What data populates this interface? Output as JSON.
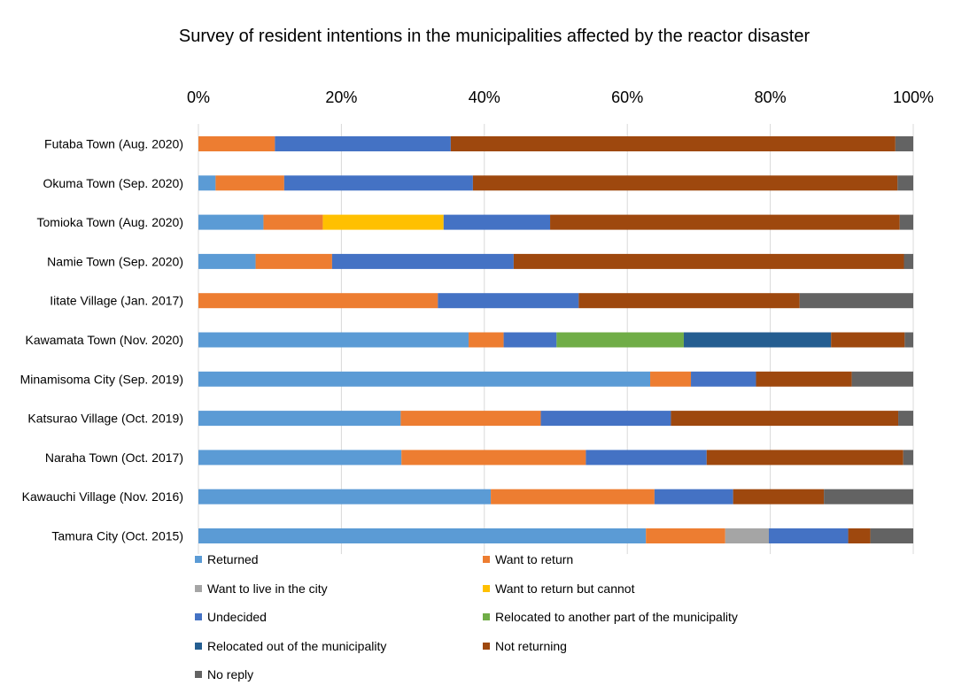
{
  "chart_data": {
    "type": "bar",
    "orientation": "horizontal",
    "stacked": "percent",
    "title": "Survey of resident intentions in the municipalities affected by the reactor disaster",
    "xlabel": "",
    "ylabel": "",
    "xlim": [
      0,
      100
    ],
    "x_ticks": [
      "0%",
      "20%",
      "40%",
      "60%",
      "80%",
      "100%"
    ],
    "x_tick_values": [
      0,
      20,
      40,
      60,
      80,
      100
    ],
    "x_axis_position": "top",
    "grid": true,
    "legend_position": "bottom",
    "categories": [
      "Futaba Town (Aug. 2020)",
      "Okuma Town (Sep. 2020)",
      "Tomioka Town (Aug. 2020)",
      "Namie Town (Sep. 2020)",
      "Iitate Village (Jan. 2017)",
      "Kawamata Town (Nov. 2020)",
      "Minamisoma City (Sep. 2019)",
      "Katsurao Village (Oct. 2019)",
      "Naraha Town (Oct. 2017)",
      "Kawauchi Village (Nov. 2016)",
      "Tamura City (Oct. 2015)"
    ],
    "series": [
      {
        "name": "Returned",
        "color": "#5b9bd5",
        "values": [
          0,
          2.4,
          9.1,
          8.0,
          0,
          37.8,
          63.2,
          28.3,
          28.4,
          40.9,
          62.6
        ]
      },
      {
        "name": "Want to return",
        "color": "#ed7d31",
        "values": [
          10.7,
          9.6,
          8.3,
          10.7,
          33.5,
          4.9,
          5.7,
          19.6,
          25.8,
          22.9,
          11.1
        ]
      },
      {
        "name": "Want to live in the city",
        "color": "#a5a5a5",
        "values": [
          0,
          0,
          0,
          0,
          0,
          0,
          0,
          0,
          0,
          0,
          6.1
        ]
      },
      {
        "name": "Want to return but cannot",
        "color": "#ffc000",
        "values": [
          0,
          0,
          16.9,
          0,
          0,
          0,
          0,
          0,
          0,
          0,
          0
        ]
      },
      {
        "name": "Undecided",
        "color": "#4472c4",
        "values": [
          24.6,
          26.4,
          14.9,
          25.4,
          19.7,
          7.4,
          9.1,
          18.2,
          16.9,
          11.0,
          11.1
        ]
      },
      {
        "name": "Relocated to another part of the municipality",
        "color": "#70ad47",
        "values": [
          0,
          0,
          0,
          0,
          0,
          17.8,
          0,
          0,
          0,
          0,
          0
        ]
      },
      {
        "name": "Relocated out of the municipality",
        "color": "#255e91",
        "values": [
          0,
          0,
          0,
          0,
          0,
          20.6,
          0,
          0,
          0,
          0,
          0
        ]
      },
      {
        "name": "Not returning",
        "color": "#9e480e",
        "values": [
          62.2,
          59.4,
          48.9,
          54.6,
          30.9,
          10.3,
          13.4,
          31.8,
          27.5,
          12.7,
          3.1
        ]
      },
      {
        "name": "No reply",
        "color": "#636363",
        "values": [
          2.5,
          2.2,
          1.9,
          1.3,
          15.9,
          1.2,
          8.6,
          2.1,
          1.4,
          12.5,
          6.0
        ]
      }
    ]
  }
}
